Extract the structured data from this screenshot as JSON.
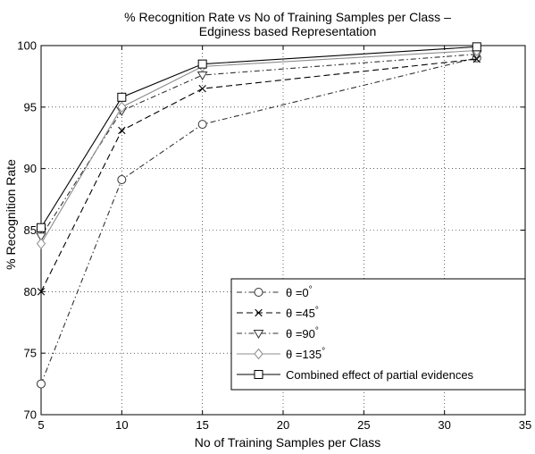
{
  "chart_data": {
    "type": "line",
    "title": "% Recognition Rate vs No of Training Samples per Class –",
    "subtitle": "Edginess based Representation",
    "xlabel": "No of Training Samples per Class",
    "ylabel": "% Recognition Rate",
    "xlim": [
      5,
      35
    ],
    "ylim": [
      70,
      100
    ],
    "xticks": [
      "5",
      "10",
      "15",
      "20",
      "25",
      "30",
      "35"
    ],
    "yticks": [
      "70",
      "75",
      "80",
      "85",
      "90",
      "95",
      "100"
    ],
    "grid": true,
    "legend_position": "bottom-right",
    "x": [
      5,
      10,
      15,
      32
    ],
    "series": [
      {
        "name": "θ =0°",
        "label_base": "θ =0",
        "label_sup": "°",
        "marker": "circle",
        "dash": "6,3,1.5,3",
        "color": "#333333",
        "values": [
          72.5,
          89.1,
          93.6,
          99.0
        ]
      },
      {
        "name": "θ =45°",
        "label_base": "θ =45",
        "label_sup": "°",
        "marker": "x",
        "dash": "7,4",
        "color": "#000000",
        "values": [
          80.0,
          93.1,
          96.5,
          98.9
        ]
      },
      {
        "name": "θ =90°",
        "label_base": "θ =90",
        "label_sup": "°",
        "marker": "triangle-down",
        "dash": "6,3,1.5,3",
        "color": "#333333",
        "values": [
          84.5,
          94.7,
          97.6,
          99.3
        ]
      },
      {
        "name": "θ =135°",
        "label_base": "θ =135",
        "label_sup": "°",
        "marker": "diamond",
        "dash": "",
        "color": "#8c8c8c",
        "values": [
          83.9,
          95.0,
          98.3,
          99.6
        ]
      },
      {
        "name": "Combined effect of partial evidences",
        "label_base": "Combined effect of partial evidences",
        "label_sup": "",
        "marker": "square",
        "dash": "",
        "color": "#000000",
        "values": [
          85.2,
          95.8,
          98.5,
          99.9
        ]
      }
    ]
  }
}
